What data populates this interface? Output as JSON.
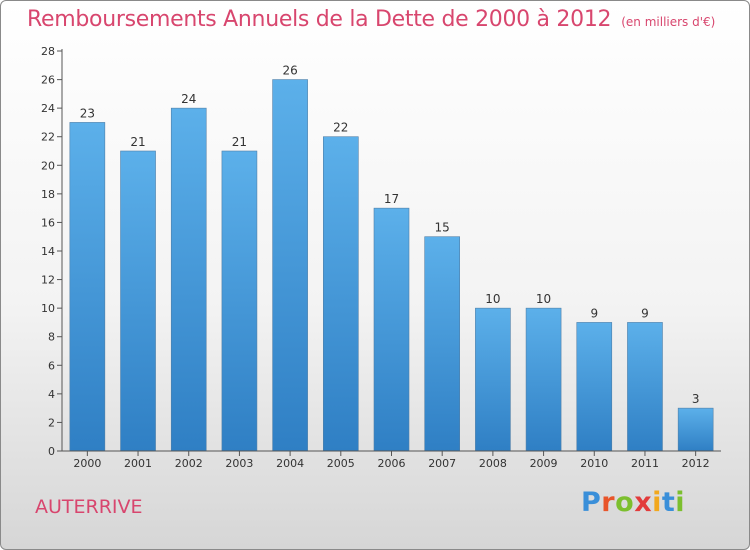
{
  "header": {
    "title": "Remboursements Annuels de la Dette de 2000 à 2012",
    "subtitle": "(en milliers d'€)"
  },
  "footer": {
    "place": "AUTERRIVE",
    "logo_letters": [
      {
        "char": "P",
        "color": "#3a8fd9"
      },
      {
        "char": "r",
        "color": "#e8552a"
      },
      {
        "char": "o",
        "color": "#7cbf2e"
      },
      {
        "char": "x",
        "color": "#e23b3b"
      },
      {
        "char": "i",
        "color": "#f2a81d"
      },
      {
        "char": "t",
        "color": "#3a8fd9"
      },
      {
        "char": "i",
        "color": "#7cbf2e"
      }
    ]
  },
  "chart_data": {
    "type": "bar",
    "title": "Remboursements Annuels de la Dette de 2000 à 2012",
    "subtitle": "(en milliers d'€)",
    "categories": [
      "2000",
      "2001",
      "2002",
      "2003",
      "2004",
      "2005",
      "2006",
      "2007",
      "2008",
      "2009",
      "2010",
      "2011",
      "2012"
    ],
    "values": [
      23,
      21,
      24,
      21,
      26,
      22,
      17,
      15,
      10,
      10,
      9,
      9,
      3
    ],
    "ylim": [
      0,
      28
    ],
    "yticks": [
      0,
      2,
      4,
      6,
      8,
      10,
      12,
      14,
      16,
      18,
      20,
      22,
      24,
      26,
      28
    ],
    "grid": false,
    "bar_color_top": "#5cb0ea",
    "bar_color_bottom": "#2f7fc4"
  }
}
